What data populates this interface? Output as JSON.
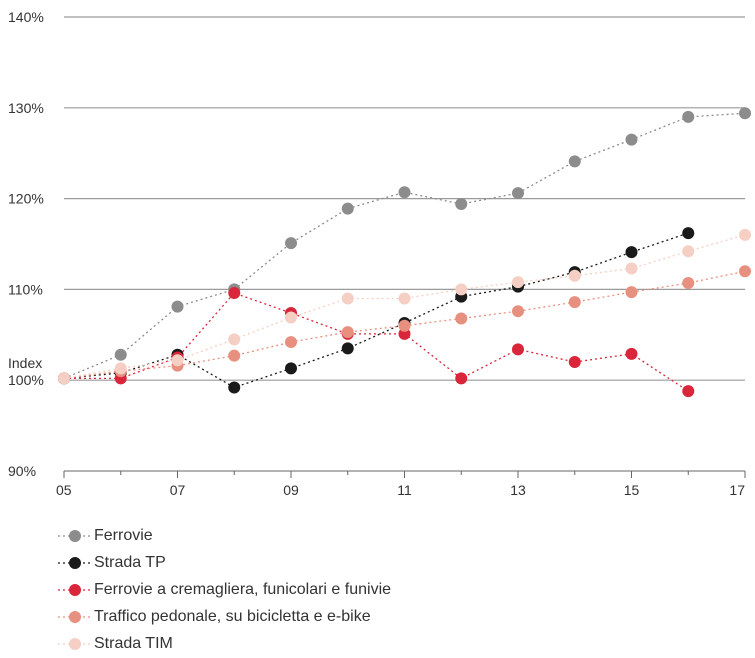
{
  "chart_data": {
    "type": "line",
    "ylabel": "Index",
    "x": [
      "05",
      "06",
      "07",
      "08",
      "09",
      "10",
      "11",
      "12",
      "13",
      "14",
      "15",
      "16",
      "17"
    ],
    "x_ticks": [
      "05",
      "07",
      "09",
      "11",
      "13",
      "15",
      "17"
    ],
    "y_ticks": [
      "140%",
      "130%",
      "120%",
      "110%",
      "100%",
      "90%"
    ],
    "ylim": [
      90,
      140
    ],
    "grid": "horizontal",
    "legend_position": "bottom",
    "series": [
      {
        "name": "Ferrovie",
        "color": "#8c8c8c",
        "values": [
          100.2,
          102.8,
          108.1,
          110.0,
          115.1,
          118.9,
          120.7,
          119.4,
          120.6,
          124.1,
          126.5,
          129.0,
          129.4
        ]
      },
      {
        "name": "Strada TP",
        "color": "#1a1a1a",
        "values": [
          100.2,
          100.8,
          102.8,
          99.2,
          101.3,
          103.5,
          106.3,
          109.2,
          110.3,
          111.9,
          114.1,
          116.2,
          null
        ]
      },
      {
        "name": "Ferrovie a cremagliera, funicolari e funivie",
        "color": "#d9263a",
        "values": [
          100.2,
          100.2,
          102.5,
          109.6,
          107.4,
          105.1,
          105.1,
          100.2,
          103.4,
          102.0,
          102.9,
          98.8,
          null
        ]
      },
      {
        "name": "Traffico pedonale, su bicicletta e e-bike",
        "color": "#e8907f",
        "values": [
          100.2,
          101.0,
          101.6,
          102.7,
          104.2,
          105.3,
          106.0,
          106.8,
          107.6,
          108.6,
          109.7,
          110.7,
          112.0
        ]
      },
      {
        "name": "Strada TIM",
        "color": "#f5cfc3",
        "values": [
          100.2,
          101.3,
          102.2,
          104.5,
          106.9,
          109.0,
          109.0,
          110.0,
          110.8,
          111.5,
          112.3,
          114.2,
          116.0
        ]
      }
    ]
  }
}
